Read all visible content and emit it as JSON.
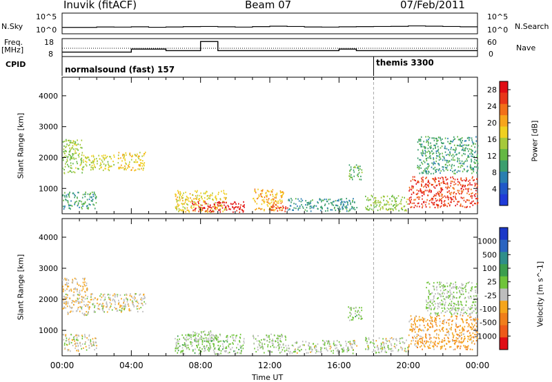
{
  "header": {
    "station": "Inuvik (fitACF)",
    "beam": "Beam 07",
    "date": "07/Feb/2011"
  },
  "side_labels": {
    "nsky": "N.Sky",
    "nsearch": "N.Search",
    "freq": "Freq.",
    "freq_unit": "[MHz]",
    "nave": "Nave",
    "cpid": "CPID"
  },
  "strip_ticks": {
    "nsky_top": "10^5",
    "nsky_bottom": "10^0",
    "nsearch_top": "10^5",
    "nsearch_bottom": "10^0",
    "freq_top": "18",
    "freq_bottom": "8",
    "nave_top": "60",
    "nave_bottom": "0"
  },
  "cpid": {
    "mode1": "normalsound (fast) 157",
    "mode2": "themis 3300",
    "mode2_start_hour": 18.0
  },
  "strip_data": {
    "nsky_level": [
      0.42,
      0.42,
      0.45,
      0.44,
      0.46,
      0.43,
      0.45,
      0.47,
      0.48,
      0.46,
      0.44,
      0.47,
      0.5,
      0.48,
      0.45,
      0.44,
      0.46,
      0.47,
      0.48,
      0.49,
      0.52,
      0.5,
      0.48,
      0.46
    ],
    "freq_mhz": [
      10,
      10,
      10,
      10,
      12,
      12,
      11,
      11,
      17,
      11,
      11,
      11,
      11,
      11,
      11,
      11,
      12,
      11,
      11,
      11,
      11,
      11,
      11,
      11
    ]
  },
  "chart_data": [
    {
      "type": "heatmap",
      "title": "",
      "xlabel": "",
      "ylabel": "Slant Range [km]",
      "x_ticks": [
        "00:00",
        "04:00",
        "08:00",
        "12:00",
        "16:00",
        "20:00",
        "00:00"
      ],
      "x_range_hours": [
        0,
        24
      ],
      "y_ticks": [
        "1000",
        "2000",
        "3000",
        "4000"
      ],
      "ylim": [
        180,
        4600
      ],
      "colorbar": {
        "label": "Power [dB]",
        "ticks": [
          "4",
          "8",
          "12",
          "16",
          "20",
          "24",
          "28"
        ],
        "range": [
          0,
          30
        ],
        "colors": [
          "#1f3bd8",
          "#2058c8",
          "#2a7fb0",
          "#3b9e6e",
          "#64b844",
          "#a6c93a",
          "#f0d020",
          "#f7a51c",
          "#f27019",
          "#e8371a",
          "#e00d15"
        ]
      },
      "regions": [
        {
          "t0": 0.0,
          "t1": 1.2,
          "r0": 1500,
          "r1": 2600,
          "v": 14
        },
        {
          "t0": 1.2,
          "t1": 3.0,
          "r0": 1600,
          "r1": 2100,
          "v": 16
        },
        {
          "t0": 3.2,
          "t1": 4.8,
          "r0": 1600,
          "r1": 2200,
          "v": 18
        },
        {
          "t0": 0.0,
          "t1": 2.0,
          "r0": 350,
          "r1": 900,
          "v": 10
        },
        {
          "t0": 6.5,
          "t1": 9.5,
          "r0": 250,
          "r1": 950,
          "v": 18
        },
        {
          "t0": 7.5,
          "t1": 10.5,
          "r0": 250,
          "r1": 600,
          "v": 28
        },
        {
          "t0": 11.0,
          "t1": 12.8,
          "r0": 300,
          "r1": 1000,
          "v": 20
        },
        {
          "t0": 12.0,
          "t1": 13.0,
          "r0": 250,
          "r1": 500,
          "v": 26
        },
        {
          "t0": 13.0,
          "t1": 17.0,
          "r0": 280,
          "r1": 700,
          "v": 9
        },
        {
          "t0": 16.5,
          "t1": 17.3,
          "r0": 1300,
          "r1": 1800,
          "v": 12
        },
        {
          "t0": 17.5,
          "t1": 20.0,
          "r0": 300,
          "r1": 800,
          "v": 14
        },
        {
          "t0": 20.0,
          "t1": 24.0,
          "r0": 400,
          "r1": 1400,
          "v": 26
        },
        {
          "t0": 20.5,
          "t1": 24.0,
          "r0": 1500,
          "r1": 2700,
          "v": 10
        }
      ]
    },
    {
      "type": "heatmap",
      "title": "",
      "xlabel": "Time UT",
      "ylabel": "Slant Range [km]",
      "x_ticks": [
        "00:00",
        "04:00",
        "08:00",
        "12:00",
        "16:00",
        "20:00",
        "00:00"
      ],
      "x_range_hours": [
        0,
        24
      ],
      "y_ticks": [
        "1000",
        "2000",
        "3000",
        "4000"
      ],
      "ylim": [
        180,
        4600
      ],
      "colorbar": {
        "label": "Velocity [m s^-1]",
        "ticks": [
          "1000",
          "500",
          "100",
          "25",
          "-25",
          "-100",
          "-500",
          "-1000"
        ],
        "range": [
          -1200,
          1200
        ],
        "colors": [
          "#1c38c8",
          "#2a64c0",
          "#2f8e8a",
          "#3c9e4e",
          "#6fc43a",
          "#bdbdbd",
          "#f5a51c",
          "#f07e1c",
          "#ee5a1a",
          "#e00d15"
        ]
      },
      "regions": [
        {
          "t0": 0.0,
          "t1": 1.5,
          "r0": 1500,
          "r1": 2700,
          "v": -200
        },
        {
          "t0": 1.5,
          "t1": 4.8,
          "r0": 1600,
          "r1": 2200,
          "v": -150
        },
        {
          "t0": 0.0,
          "t1": 2.0,
          "r0": 350,
          "r1": 900,
          "v": -120
        },
        {
          "t0": 6.5,
          "t1": 10.5,
          "r0": 250,
          "r1": 900,
          "v": 60
        },
        {
          "t0": 7.5,
          "t1": 9.0,
          "r0": 600,
          "r1": 1000,
          "v": 0
        },
        {
          "t0": 11.0,
          "t1": 13.0,
          "r0": 300,
          "r1": 900,
          "v": 0
        },
        {
          "t0": 13.0,
          "t1": 17.0,
          "r0": 280,
          "r1": 700,
          "v": -60
        },
        {
          "t0": 16.5,
          "t1": 17.3,
          "r0": 1300,
          "r1": 1800,
          "v": 60
        },
        {
          "t0": 17.5,
          "t1": 20.0,
          "r0": 300,
          "r1": 800,
          "v": -80
        },
        {
          "t0": 20.0,
          "t1": 24.0,
          "r0": 400,
          "r1": 1500,
          "v": -400
        },
        {
          "t0": 21.0,
          "t1": 24.0,
          "r0": 1500,
          "r1": 2600,
          "v": 0
        }
      ]
    }
  ]
}
